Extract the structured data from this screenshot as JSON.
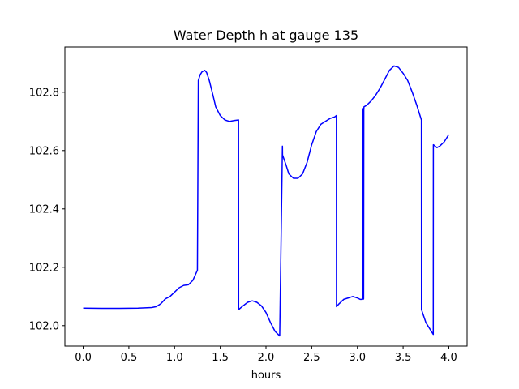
{
  "chart_data": {
    "type": "line",
    "title": "Water Depth h at gauge 135",
    "xlabel": "hours",
    "ylabel": "",
    "xlim": [
      -0.2,
      4.2
    ],
    "ylim": [
      101.93,
      102.955
    ],
    "xticks": [
      0.0,
      0.5,
      1.0,
      1.5,
      2.0,
      2.5,
      3.0,
      3.5,
      4.0
    ],
    "xtick_labels": [
      "0.0",
      "0.5",
      "1.0",
      "1.5",
      "2.0",
      "2.5",
      "3.0",
      "3.5",
      "4.0"
    ],
    "yticks": [
      102.0,
      102.2,
      102.4,
      102.6,
      102.8
    ],
    "ytick_labels": [
      "102.0",
      "102.2",
      "102.4",
      "102.6",
      "102.8"
    ],
    "grid": false,
    "legend": "none",
    "series": [
      {
        "color": "#0000ff",
        "x": [
          0.0,
          0.2,
          0.4,
          0.6,
          0.75,
          0.8,
          0.85,
          0.9,
          0.95,
          1.0,
          1.05,
          1.1,
          1.15,
          1.2,
          1.25,
          1.26,
          1.28,
          1.3,
          1.33,
          1.35,
          1.38,
          1.42,
          1.45,
          1.5,
          1.55,
          1.6,
          1.65,
          1.7,
          1.701,
          1.75,
          1.8,
          1.85,
          1.9,
          1.95,
          2.0,
          2.05,
          2.1,
          2.15,
          2.18,
          2.181,
          2.22,
          2.25,
          2.3,
          2.35,
          2.4,
          2.45,
          2.5,
          2.55,
          2.6,
          2.65,
          2.7,
          2.75,
          2.77,
          2.771,
          2.8,
          2.85,
          2.9,
          2.95,
          3.0,
          3.03,
          3.05,
          3.06,
          3.062,
          3.064,
          3.066,
          3.068,
          3.07,
          3.072,
          3.1,
          3.15,
          3.2,
          3.25,
          3.3,
          3.35,
          3.4,
          3.45,
          3.5,
          3.55,
          3.6,
          3.65,
          3.7,
          3.701,
          3.75,
          3.8,
          3.83,
          3.831,
          3.87,
          3.9,
          3.95,
          4.0
        ],
        "y": [
          102.06,
          102.059,
          102.059,
          102.06,
          102.062,
          102.065,
          102.075,
          102.092,
          102.1,
          102.115,
          102.13,
          102.138,
          102.14,
          102.155,
          102.19,
          102.84,
          102.86,
          102.87,
          102.875,
          102.868,
          102.84,
          102.79,
          102.75,
          102.72,
          102.705,
          102.7,
          102.703,
          102.705,
          102.055,
          102.068,
          102.08,
          102.085,
          102.08,
          102.068,
          102.045,
          102.01,
          101.98,
          101.965,
          102.615,
          102.585,
          102.55,
          102.52,
          102.505,
          102.505,
          102.52,
          102.56,
          102.62,
          102.665,
          102.69,
          102.7,
          102.71,
          102.715,
          102.72,
          102.065,
          102.075,
          102.09,
          102.095,
          102.1,
          102.095,
          102.09,
          102.09,
          102.095,
          102.74,
          102.09,
          102.745,
          102.092,
          102.74,
          102.75,
          102.755,
          102.77,
          102.79,
          102.815,
          102.845,
          102.875,
          102.89,
          102.885,
          102.865,
          102.84,
          102.8,
          102.755,
          102.705,
          102.055,
          102.01,
          101.985,
          101.97,
          102.62,
          102.61,
          102.615,
          102.63,
          102.655
        ]
      }
    ]
  }
}
